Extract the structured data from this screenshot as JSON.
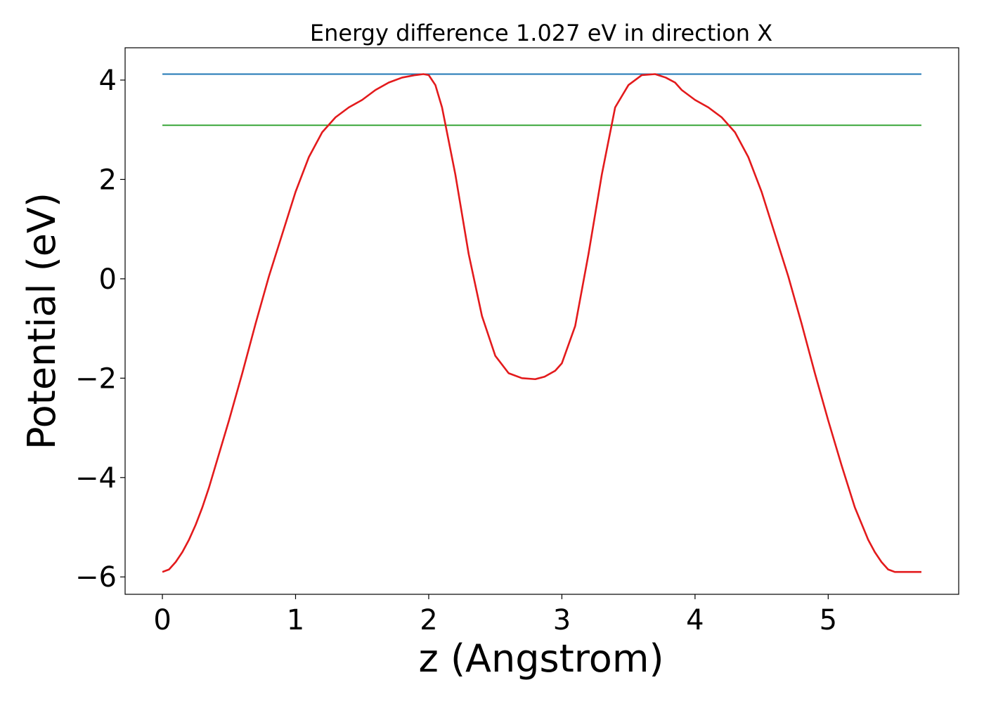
{
  "chart_data": {
    "type": "line",
    "title": "Energy difference 1.027 eV in direction X",
    "xlabel": "z (Angstrom)",
    "ylabel": "Potential (eV)",
    "xlim": [
      -0.28,
      5.98
    ],
    "ylim": [
      -6.35,
      4.65
    ],
    "xticks": [
      0,
      1,
      2,
      3,
      4,
      5
    ],
    "xtick_labels": [
      "0",
      "1",
      "2",
      "3",
      "4",
      "5"
    ],
    "yticks": [
      4,
      2,
      0,
      -2,
      -4,
      -6
    ],
    "ytick_labels": [
      "4",
      "2",
      "0",
      "−2",
      "−4",
      "−6"
    ],
    "grid": false,
    "series": [
      {
        "color": "#1f77b4",
        "x": [
          0,
          5.7
        ],
        "y": [
          4.12,
          4.12
        ]
      },
      {
        "color": "#2ca02c",
        "x": [
          0,
          5.7
        ],
        "y": [
          3.09,
          3.09
        ]
      },
      {
        "color": "#e31a1c",
        "x": [
          0,
          0.05,
          0.1,
          0.15,
          0.2,
          0.25,
          0.3,
          0.35,
          0.4,
          0.5,
          0.6,
          0.7,
          0.8,
          0.9,
          1.0,
          1.1,
          1.2,
          1.3,
          1.4,
          1.5,
          1.6,
          1.7,
          1.8,
          1.9,
          1.96,
          2.0,
          2.05,
          2.1,
          2.2,
          2.3,
          2.4,
          2.5,
          2.6,
          2.7,
          2.8,
          2.87,
          2.95,
          3.0,
          3.1,
          3.2,
          3.3,
          3.4,
          3.5,
          3.6,
          3.7,
          3.78,
          3.85,
          3.9,
          4.0,
          4.1,
          4.2,
          4.3,
          4.4,
          4.5,
          4.6,
          4.7,
          4.8,
          4.9,
          5.0,
          5.1,
          5.2,
          5.3,
          5.35,
          5.4,
          5.45,
          5.5,
          5.55,
          5.6,
          5.65,
          5.7
        ],
        "y": [
          -5.9,
          -5.85,
          -5.7,
          -5.5,
          -5.25,
          -4.95,
          -4.6,
          -4.2,
          -3.75,
          -2.85,
          -1.9,
          -0.9,
          0.05,
          0.9,
          1.75,
          2.45,
          2.95,
          3.25,
          3.45,
          3.6,
          3.8,
          3.95,
          4.05,
          4.1,
          4.12,
          4.1,
          3.9,
          3.45,
          2.1,
          0.5,
          -0.75,
          -1.55,
          -1.9,
          -2.0,
          -2.02,
          -1.97,
          -1.85,
          -1.7,
          -0.95,
          0.5,
          2.1,
          3.45,
          3.9,
          4.1,
          4.12,
          4.05,
          3.95,
          3.8,
          3.6,
          3.45,
          3.25,
          2.95,
          2.45,
          1.75,
          0.9,
          0.05,
          -0.9,
          -1.9,
          -2.85,
          -3.75,
          -4.6,
          -5.25,
          -5.5,
          -5.7,
          -5.85,
          -5.9,
          -5.9,
          -5.9,
          -5.9,
          -5.9
        ]
      }
    ]
  }
}
